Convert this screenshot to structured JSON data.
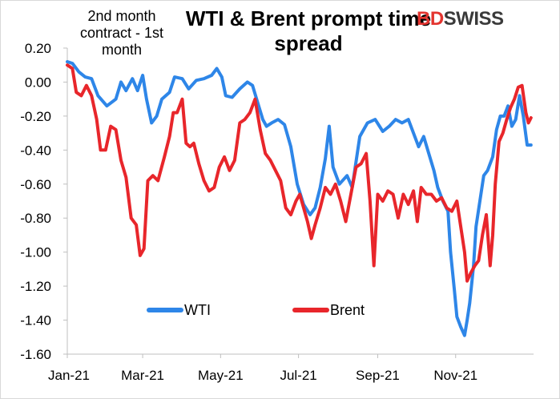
{
  "brand": {
    "part1": "BD",
    "part2": "SWISS",
    "accent": "#e3342f"
  },
  "annotation": "2nd month contract - 1st month",
  "chart_data": {
    "type": "line",
    "title": "WTI & Brent prompt time spread",
    "xlabel": "",
    "ylabel": "",
    "ylim": [
      -1.6,
      0.2
    ],
    "yticks": [
      0.2,
      0.0,
      -0.2,
      -0.4,
      -0.6,
      -0.8,
      -1.0,
      -1.2,
      -1.4,
      -1.6
    ],
    "ytick_labels": [
      "0.20",
      "0.00",
      "-0.20",
      "-0.40",
      "-0.60",
      "-0.80",
      "-1.00",
      "-1.20",
      "-1.40",
      "-1.60"
    ],
    "xticks": [
      "Jan-21",
      "Mar-21",
      "May-21",
      "Jul-21",
      "Sep-21",
      "Nov-21"
    ],
    "grid": false,
    "legend": "inside-bottom-left",
    "series": [
      {
        "name": "WTI",
        "color": "#2e86e8",
        "points": [
          [
            "2021-01-01",
            0.12
          ],
          [
            "2021-01-05",
            0.11
          ],
          [
            "2021-01-10",
            0.06
          ],
          [
            "2021-01-15",
            0.03
          ],
          [
            "2021-01-20",
            0.02
          ],
          [
            "2021-01-25",
            -0.08
          ],
          [
            "2021-02-01",
            -0.14
          ],
          [
            "2021-02-08",
            -0.1
          ],
          [
            "2021-02-12",
            0.0
          ],
          [
            "2021-02-16",
            -0.05
          ],
          [
            "2021-02-21",
            0.02
          ],
          [
            "2021-02-25",
            -0.05
          ],
          [
            "2021-03-01",
            0.04
          ],
          [
            "2021-03-04",
            -0.1
          ],
          [
            "2021-03-08",
            -0.24
          ],
          [
            "2021-03-12",
            -0.2
          ],
          [
            "2021-03-16",
            -0.1
          ],
          [
            "2021-03-22",
            -0.06
          ],
          [
            "2021-03-26",
            0.03
          ],
          [
            "2021-04-01",
            0.02
          ],
          [
            "2021-04-06",
            -0.04
          ],
          [
            "2021-04-12",
            0.01
          ],
          [
            "2021-04-18",
            0.02
          ],
          [
            "2021-04-24",
            0.04
          ],
          [
            "2021-04-28",
            0.08
          ],
          [
            "2021-05-02",
            0.03
          ],
          [
            "2021-05-05",
            -0.08
          ],
          [
            "2021-05-10",
            -0.09
          ],
          [
            "2021-05-16",
            -0.04
          ],
          [
            "2021-05-22",
            0.0
          ],
          [
            "2021-05-26",
            -0.02
          ],
          [
            "2021-05-30",
            -0.12
          ],
          [
            "2021-06-03",
            -0.22
          ],
          [
            "2021-06-06",
            -0.26
          ],
          [
            "2021-06-10",
            -0.24
          ],
          [
            "2021-06-15",
            -0.22
          ],
          [
            "2021-06-20",
            -0.25
          ],
          [
            "2021-06-25",
            -0.38
          ],
          [
            "2021-06-30",
            -0.6
          ],
          [
            "2021-07-05",
            -0.72
          ],
          [
            "2021-07-10",
            -0.78
          ],
          [
            "2021-07-14",
            -0.74
          ],
          [
            "2021-07-18",
            -0.62
          ],
          [
            "2021-07-22",
            -0.45
          ],
          [
            "2021-07-25",
            -0.26
          ],
          [
            "2021-07-28",
            -0.5
          ],
          [
            "2021-08-02",
            -0.6
          ],
          [
            "2021-08-08",
            -0.55
          ],
          [
            "2021-08-12",
            -0.62
          ],
          [
            "2021-08-18",
            -0.32
          ],
          [
            "2021-08-24",
            -0.24
          ],
          [
            "2021-08-30",
            -0.22
          ],
          [
            "2021-09-05",
            -0.29
          ],
          [
            "2021-09-10",
            -0.26
          ],
          [
            "2021-09-15",
            -0.22
          ],
          [
            "2021-09-20",
            -0.24
          ],
          [
            "2021-09-25",
            -0.22
          ],
          [
            "2021-09-29",
            -0.3
          ],
          [
            "2021-10-03",
            -0.38
          ],
          [
            "2021-10-07",
            -0.32
          ],
          [
            "2021-10-11",
            -0.42
          ],
          [
            "2021-10-15",
            -0.52
          ],
          [
            "2021-10-18",
            -0.62
          ],
          [
            "2021-10-22",
            -0.7
          ],
          [
            "2021-10-26",
            -0.76
          ],
          [
            "2021-10-28",
            -1.0
          ],
          [
            "2021-10-31",
            -1.22
          ],
          [
            "2021-11-02",
            -1.38
          ],
          [
            "2021-11-05",
            -1.44
          ],
          [
            "2021-11-08",
            -1.49
          ],
          [
            "2021-11-10",
            -1.4
          ],
          [
            "2021-11-12",
            -1.3
          ],
          [
            "2021-11-15",
            -1.08
          ],
          [
            "2021-11-17",
            -0.85
          ],
          [
            "2021-11-20",
            -0.7
          ],
          [
            "2021-11-23",
            -0.55
          ],
          [
            "2021-11-26",
            -0.52
          ],
          [
            "2021-11-30",
            -0.44
          ],
          [
            "2021-12-03",
            -0.28
          ],
          [
            "2021-12-06",
            -0.2
          ],
          [
            "2021-12-09",
            -0.2
          ],
          [
            "2021-12-12",
            -0.14
          ],
          [
            "2021-12-15",
            -0.26
          ],
          [
            "2021-12-18",
            -0.22
          ],
          [
            "2021-12-21",
            -0.08
          ],
          [
            "2021-12-24",
            -0.2
          ],
          [
            "2021-12-27",
            -0.37
          ],
          [
            "2021-12-30",
            -0.37
          ]
        ]
      },
      {
        "name": "Brent",
        "color": "#e8262b",
        "points": [
          [
            "2021-01-01",
            0.1
          ],
          [
            "2021-01-05",
            0.08
          ],
          [
            "2021-01-08",
            -0.06
          ],
          [
            "2021-01-12",
            -0.08
          ],
          [
            "2021-01-16",
            -0.02
          ],
          [
            "2021-01-20",
            -0.08
          ],
          [
            "2021-01-24",
            -0.22
          ],
          [
            "2021-01-27",
            -0.4
          ],
          [
            "2021-01-31",
            -0.4
          ],
          [
            "2021-02-04",
            -0.26
          ],
          [
            "2021-02-08",
            -0.28
          ],
          [
            "2021-02-12",
            -0.46
          ],
          [
            "2021-02-16",
            -0.56
          ],
          [
            "2021-02-20",
            -0.8
          ],
          [
            "2021-02-24",
            -0.84
          ],
          [
            "2021-02-27",
            -1.02
          ],
          [
            "2021-03-02",
            -0.98
          ],
          [
            "2021-03-05",
            -0.58
          ],
          [
            "2021-03-09",
            -0.55
          ],
          [
            "2021-03-13",
            -0.58
          ],
          [
            "2021-03-18",
            -0.44
          ],
          [
            "2021-03-22",
            -0.32
          ],
          [
            "2021-03-25",
            -0.18
          ],
          [
            "2021-03-28",
            -0.18
          ],
          [
            "2021-04-01",
            -0.1
          ],
          [
            "2021-04-04",
            -0.36
          ],
          [
            "2021-04-07",
            -0.38
          ],
          [
            "2021-04-10",
            -0.36
          ],
          [
            "2021-04-14",
            -0.48
          ],
          [
            "2021-04-18",
            -0.58
          ],
          [
            "2021-04-22",
            -0.64
          ],
          [
            "2021-04-26",
            -0.62
          ],
          [
            "2021-04-30",
            -0.5
          ],
          [
            "2021-05-04",
            -0.44
          ],
          [
            "2021-05-08",
            -0.52
          ],
          [
            "2021-05-12",
            -0.46
          ],
          [
            "2021-05-16",
            -0.24
          ],
          [
            "2021-05-20",
            -0.22
          ],
          [
            "2021-05-24",
            -0.18
          ],
          [
            "2021-05-28",
            -0.1
          ],
          [
            "2021-06-01",
            -0.28
          ],
          [
            "2021-06-05",
            -0.42
          ],
          [
            "2021-06-09",
            -0.46
          ],
          [
            "2021-06-13",
            -0.52
          ],
          [
            "2021-06-17",
            -0.58
          ],
          [
            "2021-06-21",
            -0.74
          ],
          [
            "2021-06-25",
            -0.78
          ],
          [
            "2021-06-29",
            -0.7
          ],
          [
            "2021-07-02",
            -0.66
          ],
          [
            "2021-07-05",
            -0.74
          ],
          [
            "2021-07-08",
            -0.82
          ],
          [
            "2021-07-11",
            -0.92
          ],
          [
            "2021-07-14",
            -0.84
          ],
          [
            "2021-07-18",
            -0.74
          ],
          [
            "2021-07-22",
            -0.62
          ],
          [
            "2021-07-26",
            -0.66
          ],
          [
            "2021-07-30",
            -0.6
          ],
          [
            "2021-08-03",
            -0.7
          ],
          [
            "2021-08-07",
            -0.82
          ],
          [
            "2021-08-11",
            -0.66
          ],
          [
            "2021-08-15",
            -0.5
          ],
          [
            "2021-08-19",
            -0.48
          ],
          [
            "2021-08-23",
            -0.42
          ],
          [
            "2021-08-26",
            -0.7
          ],
          [
            "2021-08-29",
            -1.08
          ],
          [
            "2021-09-01",
            -0.66
          ],
          [
            "2021-09-05",
            -0.7
          ],
          [
            "2021-09-09",
            -0.64
          ],
          [
            "2021-09-13",
            -0.66
          ],
          [
            "2021-09-17",
            -0.8
          ],
          [
            "2021-09-21",
            -0.66
          ],
          [
            "2021-09-25",
            -0.72
          ],
          [
            "2021-09-29",
            -0.64
          ],
          [
            "2021-10-02",
            -0.82
          ],
          [
            "2021-10-05",
            -0.62
          ],
          [
            "2021-10-09",
            -0.66
          ],
          [
            "2021-10-13",
            -0.66
          ],
          [
            "2021-10-17",
            -0.7
          ],
          [
            "2021-10-21",
            -0.68
          ],
          [
            "2021-10-25",
            -0.74
          ],
          [
            "2021-10-29",
            -0.76
          ],
          [
            "2021-11-02",
            -0.7
          ],
          [
            "2021-11-05",
            -0.85
          ],
          [
            "2021-11-08",
            -1.0
          ],
          [
            "2021-11-10",
            -1.17
          ],
          [
            "2021-11-13",
            -1.12
          ],
          [
            "2021-11-16",
            -1.08
          ],
          [
            "2021-11-19",
            -1.05
          ],
          [
            "2021-11-22",
            -0.9
          ],
          [
            "2021-11-25",
            -0.78
          ],
          [
            "2021-11-28",
            -1.08
          ],
          [
            "2021-11-30",
            -0.9
          ],
          [
            "2021-12-02",
            -0.6
          ],
          [
            "2021-12-05",
            -0.35
          ],
          [
            "2021-12-08",
            -0.3
          ],
          [
            "2021-12-11",
            -0.22
          ],
          [
            "2021-12-14",
            -0.15
          ],
          [
            "2021-12-17",
            -0.1
          ],
          [
            "2021-12-20",
            -0.03
          ],
          [
            "2021-12-23",
            -0.02
          ],
          [
            "2021-12-26",
            -0.18
          ],
          [
            "2021-12-28",
            -0.24
          ],
          [
            "2021-12-30",
            -0.21
          ]
        ]
      }
    ]
  }
}
